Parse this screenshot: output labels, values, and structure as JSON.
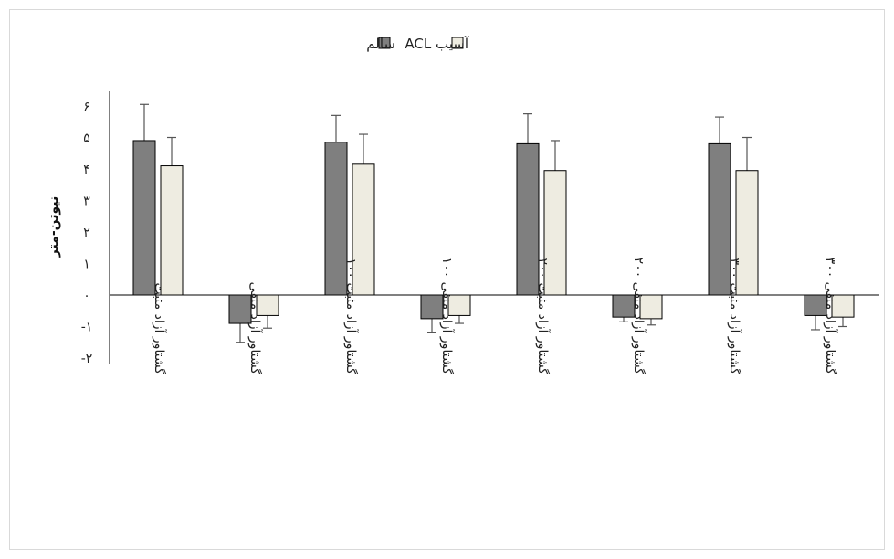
{
  "chart_data": {
    "type": "bar",
    "ylabel": "نیوتن-متر",
    "ylim": [
      -2,
      6
    ],
    "yticks": [
      {
        "value": 6,
        "label": "۶"
      },
      {
        "value": 5,
        "label": "۵"
      },
      {
        "value": 4,
        "label": "۴"
      },
      {
        "value": 3,
        "label": "۳"
      },
      {
        "value": 2,
        "label": "۲"
      },
      {
        "value": 1,
        "label": "۱"
      },
      {
        "value": 0,
        "label": "۰"
      },
      {
        "value": -1,
        "label": "-۱"
      },
      {
        "value": -2,
        "label": "-۲"
      }
    ],
    "categories": [
      "گشتاور آزاد مثبت",
      "گشتاور آزاد منفی",
      "گشتاور آزاد مثبت ۱۰۰",
      "گشتاور آزاد منفی ۱۰۰",
      "گشتاور آزاد مثبت ۲۰۰",
      "گشتاور آزاد منفی ۲۰۰",
      "گشتاور آزاد مثبت ۳۰۰",
      "گشتاور آزاد منفی ۳۰۰"
    ],
    "series": [
      {
        "name": "سالم",
        "color": "#7f7f7f",
        "values": [
          4.9,
          -0.9,
          4.85,
          -0.75,
          4.8,
          -0.7,
          4.8,
          -0.65
        ],
        "errors": [
          1.15,
          0.6,
          0.85,
          0.45,
          0.95,
          0.15,
          0.85,
          0.45
        ]
      },
      {
        "name": "آسیب ACL",
        "color": "#eeece1",
        "values": [
          4.1,
          -0.65,
          4.15,
          -0.65,
          3.95,
          -0.75,
          3.95,
          -0.7
        ],
        "errors": [
          0.9,
          0.4,
          0.95,
          0.25,
          0.95,
          0.2,
          1.05,
          0.3
        ]
      }
    ],
    "legend": "top"
  }
}
